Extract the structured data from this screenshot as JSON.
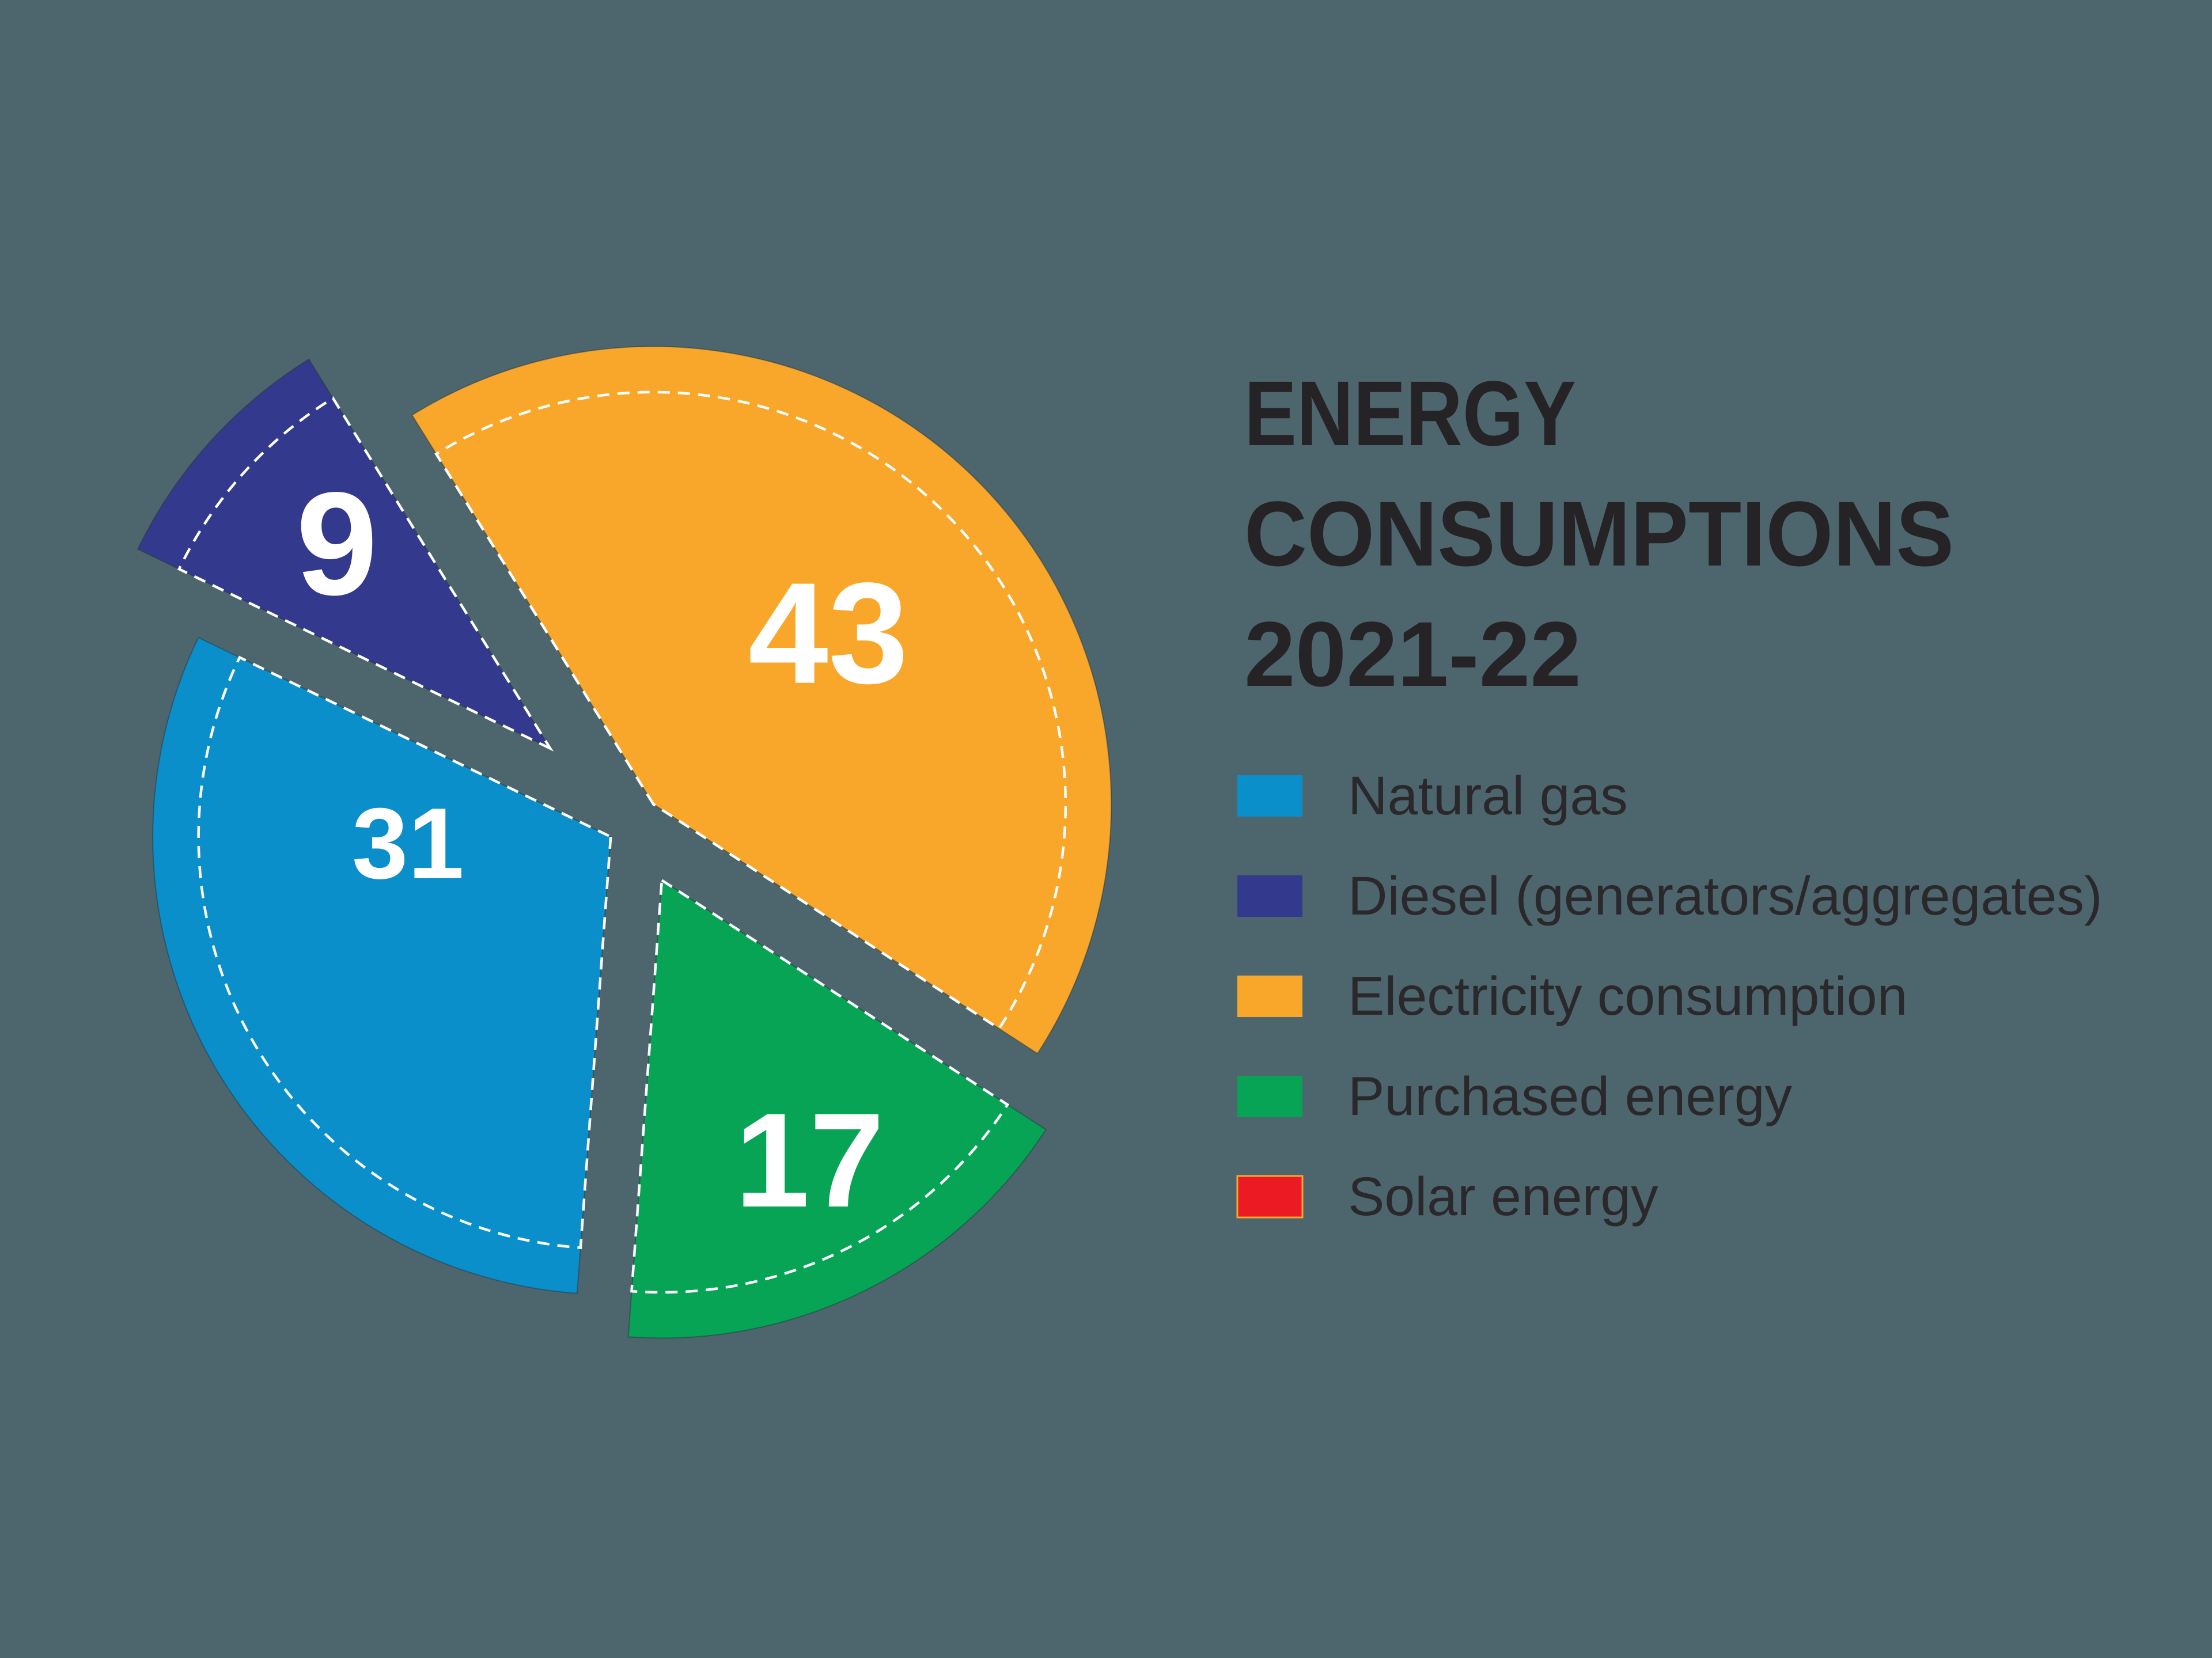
{
  "background_color": "#4D666E",
  "title": {
    "line1": "ENERGY",
    "line2": "CONSUMPTIONS",
    "line3": "2021-22",
    "color": "#262326"
  },
  "text_color": "#2A282B",
  "colors": {
    "natural_gas": "#0A8FCB",
    "diesel": "#33398D",
    "electricity": "#F9A72B",
    "purchased": "#07A456",
    "solar": "#EC1B23"
  },
  "pie_value_label_color": "#FFFFFF",
  "dashed_outline_color": "#FFFFFF",
  "legend": {
    "items": [
      {
        "key": "natural_gas",
        "label": "Natural gas"
      },
      {
        "key": "diesel",
        "label": "Diesel (generators/aggregates)"
      },
      {
        "key": "electricity",
        "label": "Electricity consumption"
      },
      {
        "key": "purchased",
        "label": "Purchased energy"
      },
      {
        "key": "solar",
        "label": "Solar energy",
        "swatch_outline_color": "#F9A72B"
      }
    ]
  },
  "chart_data": {
    "type": "pie",
    "title": "ENERGY CONSUMPTIONS 2021-22",
    "unit": "percent",
    "style": "exploded pie with dashed inner wedge outlines",
    "legend_position": "right",
    "slices": [
      {
        "key": "electricity",
        "label": "Electricity consumption",
        "value": 43
      },
      {
        "key": "purchased",
        "label": "Purchased energy",
        "value": 17
      },
      {
        "key": "natural_gas",
        "label": "Natural gas",
        "value": 31
      },
      {
        "key": "diesel",
        "label": "Diesel (generators/aggregates)",
        "value": 9
      },
      {
        "key": "solar",
        "label": "Solar energy",
        "value": 0
      }
    ],
    "shown_value_labels": [
      43,
      17,
      31,
      9
    ]
  }
}
